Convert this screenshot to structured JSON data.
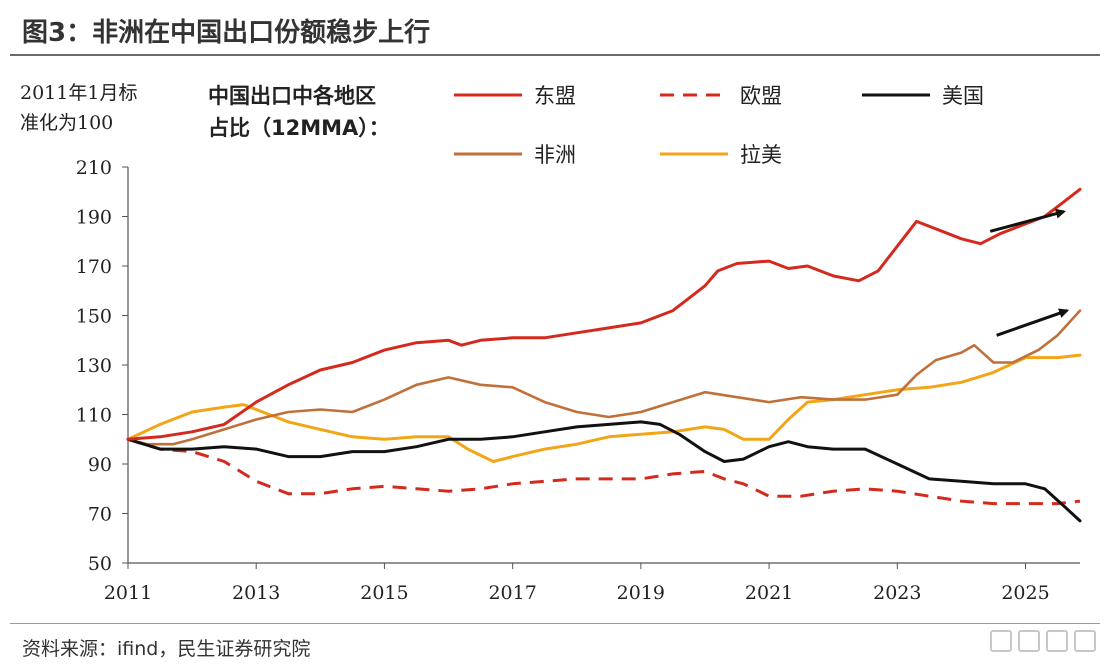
{
  "figure": {
    "title": "图3：非洲在中国出口份额稳步上行",
    "source": "资料来源：ifind，民生证券研究院"
  },
  "chart_data": {
    "type": "line",
    "ylabel": "2011年1月标准化为100",
    "ylabel_lines": [
      "2011年1月标",
      "准化为100"
    ],
    "legend_title_lines": [
      "中国出口中各地区",
      "占比（12MMA）："
    ],
    "x_ticks": [
      "2011",
      "2013",
      "2015",
      "2017",
      "2019",
      "2021",
      "2023",
      "2025"
    ],
    "xlim": [
      2011.0,
      2025.85
    ],
    "ylim": [
      50,
      210
    ],
    "y_ticks": [
      50,
      70,
      90,
      110,
      130,
      150,
      170,
      190,
      210
    ],
    "legend_position": "top",
    "series": [
      {
        "name": "东盟",
        "color": "#d42a1e",
        "dash": "solid",
        "points": [
          [
            2011.0,
            100
          ],
          [
            2011.5,
            101
          ],
          [
            2012.0,
            103
          ],
          [
            2012.5,
            106
          ],
          [
            2013.0,
            115
          ],
          [
            2013.5,
            122
          ],
          [
            2014.0,
            128
          ],
          [
            2014.5,
            131
          ],
          [
            2015.0,
            136
          ],
          [
            2015.5,
            139
          ],
          [
            2016.0,
            140
          ],
          [
            2016.2,
            138
          ],
          [
            2016.5,
            140
          ],
          [
            2017.0,
            141
          ],
          [
            2017.5,
            141
          ],
          [
            2018.0,
            143
          ],
          [
            2018.5,
            145
          ],
          [
            2019.0,
            147
          ],
          [
            2019.5,
            152
          ],
          [
            2020.0,
            162
          ],
          [
            2020.2,
            168
          ],
          [
            2020.5,
            171
          ],
          [
            2021.0,
            172
          ],
          [
            2021.3,
            169
          ],
          [
            2021.6,
            170
          ],
          [
            2022.0,
            166
          ],
          [
            2022.4,
            164
          ],
          [
            2022.7,
            168
          ],
          [
            2023.0,
            178
          ],
          [
            2023.3,
            188
          ],
          [
            2023.7,
            184
          ],
          [
            2024.0,
            181
          ],
          [
            2024.3,
            179
          ],
          [
            2024.6,
            183
          ],
          [
            2025.0,
            187
          ],
          [
            2025.3,
            190
          ],
          [
            2025.6,
            196
          ],
          [
            2025.85,
            201
          ]
        ]
      },
      {
        "name": "欧盟",
        "color": "#d42a1e",
        "dash": "dashed",
        "points": [
          [
            2011.0,
            100
          ],
          [
            2011.5,
            96
          ],
          [
            2012.0,
            95
          ],
          [
            2012.5,
            91
          ],
          [
            2013.0,
            83
          ],
          [
            2013.5,
            78
          ],
          [
            2014.0,
            78
          ],
          [
            2014.5,
            80
          ],
          [
            2015.0,
            81
          ],
          [
            2015.5,
            80
          ],
          [
            2016.0,
            79
          ],
          [
            2016.5,
            80
          ],
          [
            2017.0,
            82
          ],
          [
            2017.5,
            83
          ],
          [
            2018.0,
            84
          ],
          [
            2018.5,
            84
          ],
          [
            2019.0,
            84
          ],
          [
            2019.5,
            86
          ],
          [
            2020.0,
            87
          ],
          [
            2020.3,
            84
          ],
          [
            2020.6,
            82
          ],
          [
            2021.0,
            77
          ],
          [
            2021.5,
            77
          ],
          [
            2022.0,
            79
          ],
          [
            2022.5,
            80
          ],
          [
            2023.0,
            79
          ],
          [
            2023.5,
            77
          ],
          [
            2024.0,
            75
          ],
          [
            2024.5,
            74
          ],
          [
            2025.0,
            74
          ],
          [
            2025.5,
            74
          ],
          [
            2025.85,
            75
          ]
        ]
      },
      {
        "name": "美国",
        "color": "#111111",
        "dash": "solid",
        "points": [
          [
            2011.0,
            100
          ],
          [
            2011.5,
            96
          ],
          [
            2012.0,
            96
          ],
          [
            2012.5,
            97
          ],
          [
            2013.0,
            96
          ],
          [
            2013.5,
            93
          ],
          [
            2014.0,
            93
          ],
          [
            2014.5,
            95
          ],
          [
            2015.0,
            95
          ],
          [
            2015.5,
            97
          ],
          [
            2016.0,
            100
          ],
          [
            2016.5,
            100
          ],
          [
            2017.0,
            101
          ],
          [
            2017.5,
            103
          ],
          [
            2018.0,
            105
          ],
          [
            2018.5,
            106
          ],
          [
            2019.0,
            107
          ],
          [
            2019.3,
            106
          ],
          [
            2019.6,
            102
          ],
          [
            2020.0,
            95
          ],
          [
            2020.3,
            91
          ],
          [
            2020.6,
            92
          ],
          [
            2021.0,
            97
          ],
          [
            2021.3,
            99
          ],
          [
            2021.6,
            97
          ],
          [
            2022.0,
            96
          ],
          [
            2022.5,
            96
          ],
          [
            2023.0,
            90
          ],
          [
            2023.5,
            84
          ],
          [
            2024.0,
            83
          ],
          [
            2024.5,
            82
          ],
          [
            2025.0,
            82
          ],
          [
            2025.3,
            80
          ],
          [
            2025.6,
            73
          ],
          [
            2025.85,
            67
          ]
        ]
      },
      {
        "name": "非洲",
        "color": "#c0703a",
        "dash": "solid",
        "points": [
          [
            2011.0,
            100
          ],
          [
            2011.3,
            98
          ],
          [
            2011.7,
            98
          ],
          [
            2012.0,
            100
          ],
          [
            2012.5,
            104
          ],
          [
            2013.0,
            108
          ],
          [
            2013.5,
            111
          ],
          [
            2014.0,
            112
          ],
          [
            2014.5,
            111
          ],
          [
            2015.0,
            116
          ],
          [
            2015.5,
            122
          ],
          [
            2016.0,
            125
          ],
          [
            2016.5,
            122
          ],
          [
            2017.0,
            121
          ],
          [
            2017.5,
            115
          ],
          [
            2018.0,
            111
          ],
          [
            2018.5,
            109
          ],
          [
            2019.0,
            111
          ],
          [
            2019.5,
            115
          ],
          [
            2020.0,
            119
          ],
          [
            2020.5,
            117
          ],
          [
            2021.0,
            115
          ],
          [
            2021.5,
            117
          ],
          [
            2022.0,
            116
          ],
          [
            2022.5,
            116
          ],
          [
            2023.0,
            118
          ],
          [
            2023.3,
            126
          ],
          [
            2023.6,
            132
          ],
          [
            2024.0,
            135
          ],
          [
            2024.2,
            138
          ],
          [
            2024.5,
            131
          ],
          [
            2024.8,
            131
          ],
          [
            2025.2,
            136
          ],
          [
            2025.5,
            142
          ],
          [
            2025.85,
            152
          ]
        ]
      },
      {
        "name": "拉美",
        "color": "#f2a516",
        "dash": "solid",
        "points": [
          [
            2011.0,
            100
          ],
          [
            2011.5,
            106
          ],
          [
            2012.0,
            111
          ],
          [
            2012.5,
            113
          ],
          [
            2012.8,
            114
          ],
          [
            2013.0,
            112
          ],
          [
            2013.5,
            107
          ],
          [
            2014.0,
            104
          ],
          [
            2014.5,
            101
          ],
          [
            2015.0,
            100
          ],
          [
            2015.5,
            101
          ],
          [
            2016.0,
            101
          ],
          [
            2016.3,
            96
          ],
          [
            2016.7,
            91
          ],
          [
            2017.0,
            93
          ],
          [
            2017.5,
            96
          ],
          [
            2018.0,
            98
          ],
          [
            2018.5,
            101
          ],
          [
            2019.0,
            102
          ],
          [
            2019.5,
            103
          ],
          [
            2020.0,
            105
          ],
          [
            2020.3,
            104
          ],
          [
            2020.6,
            100
          ],
          [
            2021.0,
            100
          ],
          [
            2021.3,
            108
          ],
          [
            2021.6,
            115
          ],
          [
            2022.0,
            116
          ],
          [
            2022.5,
            118
          ],
          [
            2023.0,
            120
          ],
          [
            2023.5,
            121
          ],
          [
            2024.0,
            123
          ],
          [
            2024.5,
            127
          ],
          [
            2025.0,
            133
          ],
          [
            2025.5,
            133
          ],
          [
            2025.85,
            134
          ]
        ]
      }
    ],
    "annotations": [
      {
        "type": "arrow",
        "from": [
          2024.45,
          184
        ],
        "to": [
          2025.6,
          192
        ]
      },
      {
        "type": "arrow",
        "from": [
          2024.55,
          142
        ],
        "to": [
          2025.65,
          152
        ]
      }
    ]
  }
}
